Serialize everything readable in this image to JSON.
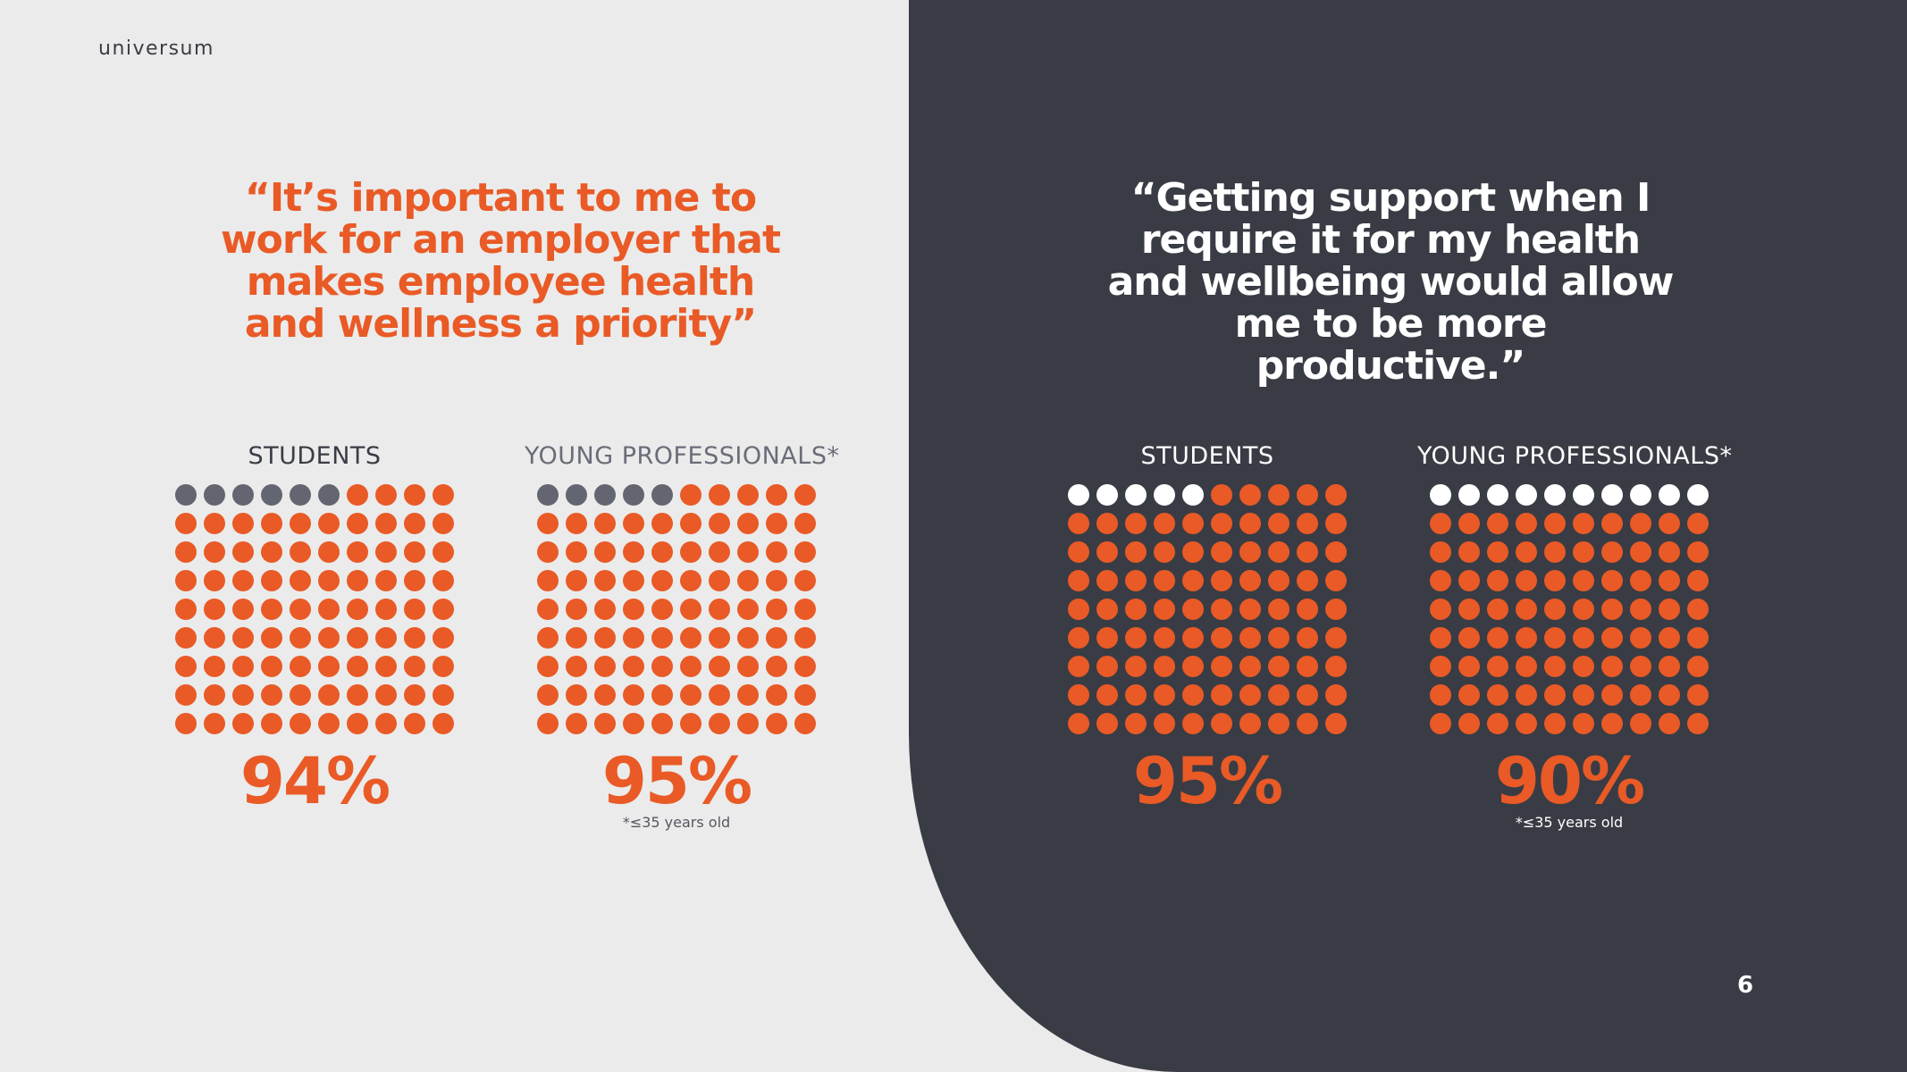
{
  "logo": "universum",
  "page_number": "6",
  "quotes": {
    "left": "“It’s important to me to work for an employer that makes employee health and wellness a priority”",
    "right": "“Getting support when I require it for my health and wellbeing would allow me to be more productive.”"
  },
  "colors": {
    "accent": "#e95a26",
    "light_bg": "#ebebeb",
    "dark_bg": "#393c44",
    "grey_dot": "#636571",
    "white_dot": "#ffffff"
  },
  "chart_data": [
    {
      "type": "waffle",
      "label": "STUDENTS",
      "value": 94,
      "value_label": "94%",
      "note": ""
    },
    {
      "type": "waffle",
      "label": "YOUNG PROFESSIONALS*",
      "value": 95,
      "value_label": "95%",
      "note": "*≤35 years old"
    },
    {
      "type": "waffle",
      "label": "STUDENTS",
      "value": 95,
      "value_label": "95%",
      "note": ""
    },
    {
      "type": "waffle",
      "label": "YOUNG PROFESSIONALS*",
      "value": 90,
      "value_label": "90%",
      "note": "*≤35 years old"
    }
  ]
}
